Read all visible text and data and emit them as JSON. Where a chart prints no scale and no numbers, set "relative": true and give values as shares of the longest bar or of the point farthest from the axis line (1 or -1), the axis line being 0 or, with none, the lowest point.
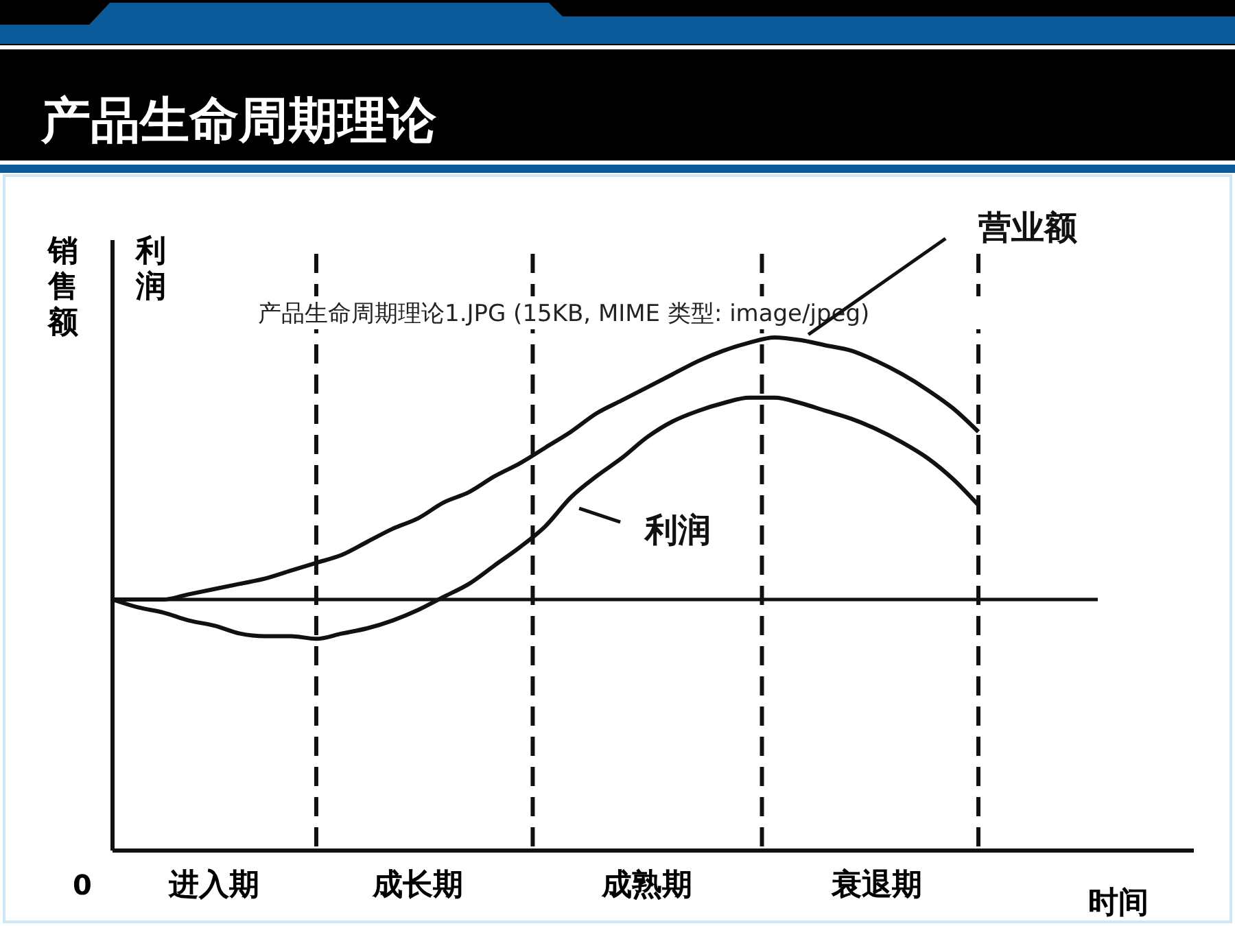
{
  "chart_data": {
    "type": "line",
    "title": "产品生命周期理论",
    "relative": true,
    "xlabel": "时间",
    "ylabel": "销售额",
    "y2label": "利润",
    "categories": [
      null,
      null,
      null,
      null,
      "进入期",
      null,
      null,
      null,
      null,
      null,
      null,
      null,
      "成长期",
      null,
      null,
      null,
      null,
      null,
      null,
      null,
      null,
      "成熟期",
      null,
      null,
      null,
      null,
      null,
      null,
      null,
      null,
      "衰退期",
      null,
      null,
      null,
      null
    ],
    "series": [
      {
        "name": "营业额",
        "color": "#111111",
        "values": [
          0,
          0,
          0,
          0.02,
          0.04,
          0.06,
          0.08,
          0.11,
          0.14,
          0.17,
          0.22,
          0.27,
          0.31,
          0.37,
          0.41,
          0.47,
          0.52,
          0.58,
          0.64,
          0.71,
          0.76,
          0.81,
          0.86,
          0.91,
          0.95,
          0.98,
          1,
          0.99,
          0.97,
          0.95,
          0.91,
          0.86,
          0.8,
          0.73,
          0.64
        ]
      },
      {
        "name": "利润",
        "color": "#111111",
        "values": [
          0,
          -0.03,
          -0.05,
          -0.08,
          -0.1,
          -0.13,
          -0.14,
          -0.14,
          -0.15,
          -0.13,
          -0.11,
          -0.08,
          -0.04,
          0.01,
          0.06,
          0.13,
          0.2,
          0.28,
          0.39,
          0.47,
          0.54,
          0.62,
          0.68,
          0.72,
          0.75,
          0.77,
          0.77,
          0.75,
          0.72,
          0.69,
          0.65,
          0.6,
          0.54,
          0.46,
          0.36
        ]
      }
    ],
    "annotations": [
      "0",
      "产品生命周期理论1.JPG (15KB, MIME 类型: image/jpeg)"
    ],
    "marker": "none",
    "line_style": "solid"
  }
}
